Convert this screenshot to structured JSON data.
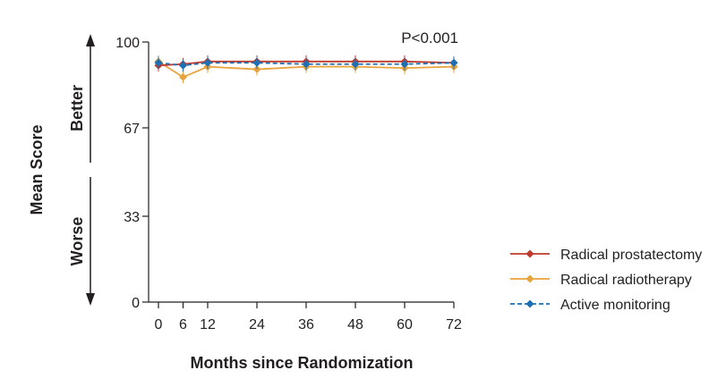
{
  "chart_data": {
    "type": "line",
    "xlabel": "Months since Randomization",
    "ylabel": "Mean Score",
    "annotation": "P<0.001",
    "direction_up_label": "Better",
    "direction_down_label": "Worse",
    "xlim": [
      0,
      72
    ],
    "ylim": [
      0,
      100
    ],
    "x_ticks": [
      0,
      6,
      12,
      24,
      36,
      48,
      60,
      72
    ],
    "y_ticks": [
      0,
      33,
      67,
      100
    ],
    "x": [
      0,
      6,
      12,
      24,
      36,
      48,
      60,
      72
    ],
    "grid": false,
    "legend_position": "right",
    "series": [
      {
        "name": "Radical prostatectomy",
        "color": "#c0392b",
        "line_style": "solid",
        "values": [
          91,
          91.5,
          92.5,
          92.5,
          92.5,
          92.5,
          92.5,
          92
        ]
      },
      {
        "name": "Radical radiotherapy",
        "color": "#e8a33d",
        "line_style": "solid",
        "values": [
          92.5,
          86.5,
          90.5,
          89.5,
          90.5,
          90.5,
          90,
          90.5
        ]
      },
      {
        "name": "Active monitoring",
        "color": "#1f6fb4",
        "line_style": "dashed",
        "values": [
          92,
          91,
          92,
          92,
          91.5,
          91.5,
          91.5,
          92
        ]
      }
    ]
  }
}
